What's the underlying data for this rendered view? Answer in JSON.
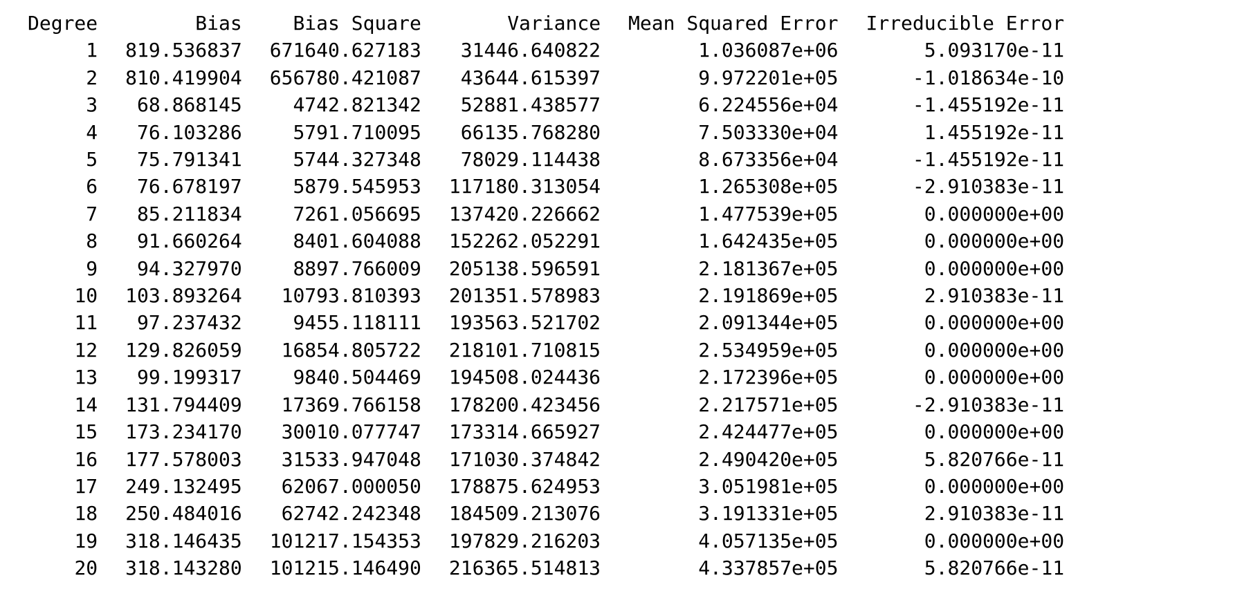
{
  "table": {
    "headers": [
      "Degree",
      "Bias",
      "Bias Square",
      "Variance",
      "Mean Squared Error",
      "Irreducible Error"
    ],
    "rows": [
      [
        "1",
        "819.536837",
        "671640.627183",
        "31446.640822",
        "1.036087e+06",
        "5.093170e-11"
      ],
      [
        "2",
        "810.419904",
        "656780.421087",
        "43644.615397",
        "9.972201e+05",
        "-1.018634e-10"
      ],
      [
        "3",
        "68.868145",
        "4742.821342",
        "52881.438577",
        "6.224556e+04",
        "-1.455192e-11"
      ],
      [
        "4",
        "76.103286",
        "5791.710095",
        "66135.768280",
        "7.503330e+04",
        "1.455192e-11"
      ],
      [
        "5",
        "75.791341",
        "5744.327348",
        "78029.114438",
        "8.673356e+04",
        "-1.455192e-11"
      ],
      [
        "6",
        "76.678197",
        "5879.545953",
        "117180.313054",
        "1.265308e+05",
        "-2.910383e-11"
      ],
      [
        "7",
        "85.211834",
        "7261.056695",
        "137420.226662",
        "1.477539e+05",
        "0.000000e+00"
      ],
      [
        "8",
        "91.660264",
        "8401.604088",
        "152262.052291",
        "1.642435e+05",
        "0.000000e+00"
      ],
      [
        "9",
        "94.327970",
        "8897.766009",
        "205138.596591",
        "2.181367e+05",
        "0.000000e+00"
      ],
      [
        "10",
        "103.893264",
        "10793.810393",
        "201351.578983",
        "2.191869e+05",
        "2.910383e-11"
      ],
      [
        "11",
        "97.237432",
        "9455.118111",
        "193563.521702",
        "2.091344e+05",
        "0.000000e+00"
      ],
      [
        "12",
        "129.826059",
        "16854.805722",
        "218101.710815",
        "2.534959e+05",
        "0.000000e+00"
      ],
      [
        "13",
        "99.199317",
        "9840.504469",
        "194508.024436",
        "2.172396e+05",
        "0.000000e+00"
      ],
      [
        "14",
        "131.794409",
        "17369.766158",
        "178200.423456",
        "2.217571e+05",
        "-2.910383e-11"
      ],
      [
        "15",
        "173.234170",
        "30010.077747",
        "173314.665927",
        "2.424477e+05",
        "0.000000e+00"
      ],
      [
        "16",
        "177.578003",
        "31533.947048",
        "171030.374842",
        "2.490420e+05",
        "5.820766e-11"
      ],
      [
        "17",
        "249.132495",
        "62067.000050",
        "178875.624953",
        "3.051981e+05",
        "0.000000e+00"
      ],
      [
        "18",
        "250.484016",
        "62742.242348",
        "184509.213076",
        "3.191331e+05",
        "2.910383e-11"
      ],
      [
        "19",
        "318.146435",
        "101217.154353",
        "197829.216203",
        "4.057135e+05",
        "0.000000e+00"
      ],
      [
        "20",
        "318.143280",
        "101215.146490",
        "216365.514813",
        "4.337857e+05",
        "5.820766e-11"
      ]
    ]
  }
}
